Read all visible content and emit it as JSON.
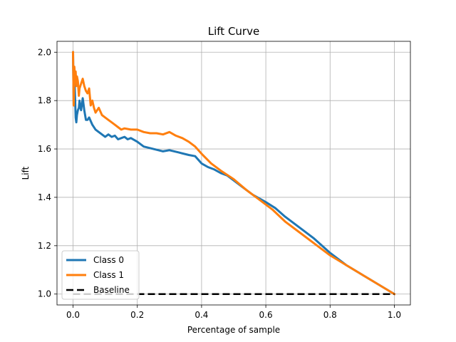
{
  "chart_data": {
    "type": "line",
    "title": "Lift Curve",
    "xlabel": "Percentage of sample",
    "ylabel": "Lift",
    "xlim": [
      -0.05,
      1.05
    ],
    "ylim": [
      0.955,
      2.045
    ],
    "xticks": [
      0.0,
      0.2,
      0.4,
      0.6,
      0.8,
      1.0
    ],
    "xtick_labels": [
      "0.0",
      "0.2",
      "0.4",
      "0.6",
      "0.8",
      "1.0"
    ],
    "yticks": [
      1.0,
      1.2,
      1.4,
      1.6,
      1.8,
      2.0
    ],
    "ytick_labels": [
      "1.0",
      "1.2",
      "1.4",
      "1.6",
      "1.8",
      "2.0"
    ],
    "grid": true,
    "legend_position": "lower-left",
    "series": [
      {
        "name": "Class 0",
        "color": "#1f77b4",
        "style": "solid",
        "x": [
          0.0,
          0.002,
          0.004,
          0.006,
          0.008,
          0.01,
          0.012,
          0.015,
          0.018,
          0.02,
          0.022,
          0.025,
          0.028,
          0.03,
          0.035,
          0.04,
          0.045,
          0.05,
          0.06,
          0.07,
          0.08,
          0.09,
          0.1,
          0.11,
          0.12,
          0.13,
          0.14,
          0.15,
          0.16,
          0.17,
          0.18,
          0.2,
          0.22,
          0.25,
          0.28,
          0.3,
          0.33,
          0.36,
          0.38,
          0.4,
          0.42,
          0.44,
          0.46,
          0.48,
          0.5,
          0.53,
          0.56,
          0.6,
          0.63,
          0.66,
          0.7,
          0.75,
          0.8,
          0.85,
          0.9,
          0.95,
          1.0
        ],
        "y": [
          2.0,
          1.78,
          1.9,
          1.82,
          1.73,
          1.71,
          1.74,
          1.76,
          1.77,
          1.8,
          1.78,
          1.76,
          1.79,
          1.81,
          1.76,
          1.72,
          1.72,
          1.73,
          1.7,
          1.68,
          1.67,
          1.66,
          1.65,
          1.66,
          1.65,
          1.655,
          1.64,
          1.645,
          1.65,
          1.64,
          1.645,
          1.63,
          1.61,
          1.6,
          1.59,
          1.595,
          1.585,
          1.575,
          1.57,
          1.54,
          1.525,
          1.515,
          1.5,
          1.49,
          1.47,
          1.44,
          1.41,
          1.38,
          1.355,
          1.32,
          1.28,
          1.23,
          1.17,
          1.12,
          1.08,
          1.04,
          1.0
        ]
      },
      {
        "name": "Class 1",
        "color": "#ff7f0e",
        "style": "solid",
        "x": [
          0.0,
          0.002,
          0.004,
          0.006,
          0.008,
          0.01,
          0.012,
          0.015,
          0.018,
          0.02,
          0.025,
          0.03,
          0.035,
          0.04,
          0.045,
          0.05,
          0.055,
          0.06,
          0.065,
          0.07,
          0.08,
          0.09,
          0.1,
          0.11,
          0.12,
          0.13,
          0.14,
          0.15,
          0.16,
          0.18,
          0.2,
          0.22,
          0.24,
          0.26,
          0.28,
          0.3,
          0.32,
          0.34,
          0.36,
          0.38,
          0.4,
          0.43,
          0.46,
          0.5,
          0.54,
          0.58,
          0.62,
          0.66,
          0.7,
          0.75,
          0.8,
          0.85,
          0.9,
          0.95,
          1.0
        ],
        "y": [
          2.0,
          1.78,
          1.94,
          1.9,
          1.92,
          1.86,
          1.9,
          1.88,
          1.82,
          1.85,
          1.87,
          1.89,
          1.86,
          1.84,
          1.83,
          1.85,
          1.78,
          1.8,
          1.77,
          1.75,
          1.77,
          1.74,
          1.73,
          1.72,
          1.71,
          1.7,
          1.69,
          1.68,
          1.685,
          1.68,
          1.68,
          1.67,
          1.665,
          1.665,
          1.66,
          1.67,
          1.655,
          1.645,
          1.63,
          1.61,
          1.58,
          1.54,
          1.51,
          1.475,
          1.43,
          1.39,
          1.35,
          1.3,
          1.26,
          1.21,
          1.16,
          1.12,
          1.08,
          1.04,
          1.0
        ]
      },
      {
        "name": "Baseline",
        "color": "#000000",
        "style": "dashed",
        "x": [
          0.0,
          1.0
        ],
        "y": [
          1.0,
          1.0
        ]
      }
    ]
  }
}
